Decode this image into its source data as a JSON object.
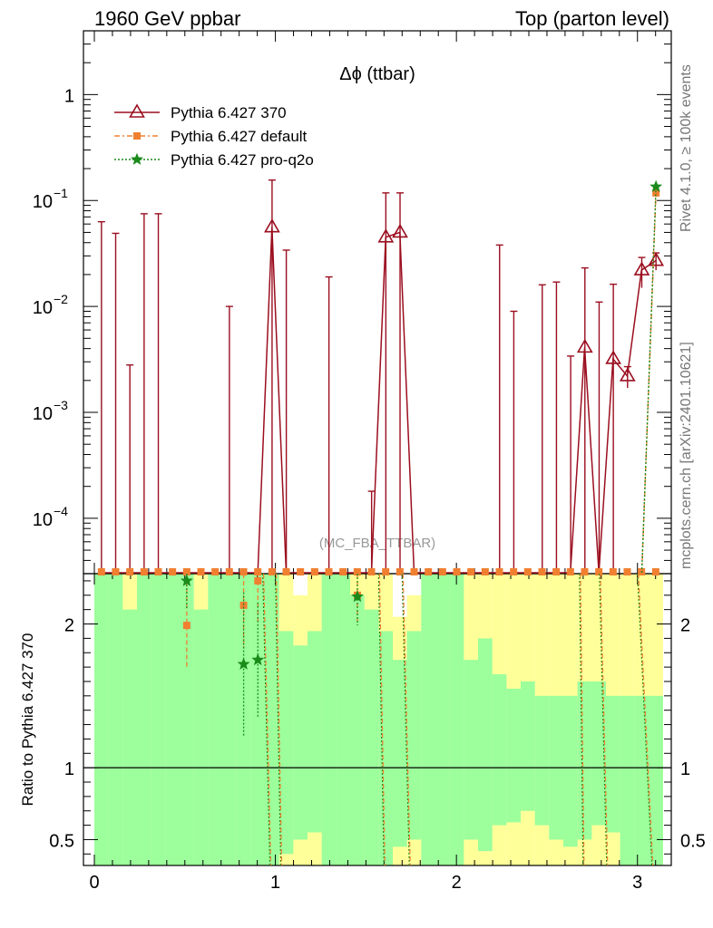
{
  "header": {
    "left": "1960 GeV ppbar",
    "right": "Top (parton level)"
  },
  "side_labels": {
    "rivet": "Rivet 4.1.0, ≥ 100k events",
    "mcplots": "mcplots.cern.ch [arXiv:2401.10621]"
  },
  "colors": {
    "pythia_370": "#9b0e1f",
    "pythia_default": "#f08030",
    "pythia_proq2o": "#1a8a1a",
    "band_green": "#9cff9c",
    "band_yellow": "#ffff99"
  },
  "chart_data": [
    {
      "type": "line",
      "title": "Δϕ (ttbar)",
      "watermark": "(MC_FBA_TTBAR)",
      "xlim": [
        0,
        3.1416
      ],
      "ylim": [
        3e-05,
        4
      ],
      "yscale": "log",
      "yticks": [
        {
          "value": 0.0001,
          "base": "10",
          "exp": "−4"
        },
        {
          "value": 0.001,
          "base": "10",
          "exp": "−3"
        },
        {
          "value": 0.01,
          "base": "10",
          "exp": "−2"
        },
        {
          "value": 0.1,
          "base": "10",
          "exp": "−1"
        },
        {
          "value": 1,
          "base": "1",
          "exp": ""
        }
      ],
      "legend_position": "top-left",
      "bin_width": 0.0785,
      "series": [
        {
          "name": "Pythia 6.427 370",
          "marker": "open-triangle",
          "line": "solid",
          "x": [
            0.9817,
            1.6101,
            1.6886,
            2.7096,
            2.8667,
            2.9452,
            3.0238,
            3.1023
          ],
          "y": [
            0.056,
            0.045,
            0.05,
            0.0041,
            0.0032,
            0.0022,
            0.022,
            0.027
          ],
          "err": [
            0.1,
            0.073,
            0.068,
            0.019,
            0.013,
            0.0005,
            0.007,
            0.005
          ]
        },
        {
          "name": "Pythia 6.427 default",
          "marker": "filled-square",
          "line": "dashdot",
          "x": [
            3.1023
          ],
          "y": [
            0.118
          ],
          "err": [
            0.004
          ]
        },
        {
          "name": "Pythia 6.427 pro-q2o",
          "marker": "star",
          "line": "dotted",
          "x": [
            3.1023
          ],
          "y": [
            0.135
          ],
          "err": [
            0.004
          ]
        }
      ],
      "empty_bin_errors": {
        "x": [
          0.0393,
          0.1178,
          0.1963,
          0.2749,
          0.3534,
          0.7461,
          1.0603,
          1.2959,
          1.5315,
          2.2384,
          2.3169,
          2.474,
          2.5525,
          2.6311,
          2.7882
        ],
        "err": [
          0.063,
          0.049,
          0.0028,
          0.075,
          0.075,
          0.01,
          0.034,
          0.019,
          0.00018,
          0.038,
          0.009,
          0.016,
          0.017,
          0.0034,
          0.011
        ]
      }
    },
    {
      "type": "area",
      "ylabel": "Ratio to Pythia 6.427 370",
      "xlim": [
        0,
        3.1416
      ],
      "ylim": [
        0.32,
        2.35
      ],
      "xticks": [
        "0",
        "1",
        "2",
        "3"
      ],
      "yticks": [
        "0.5",
        "1",
        "2"
      ],
      "reference_line": 1,
      "bands": {
        "green_top": [
          2.35,
          2.35,
          2.1,
          2.35,
          2.35,
          2.35,
          2.35,
          2.1,
          2.35,
          2.35,
          2.35,
          2.35,
          2.35,
          1.95,
          1.85,
          1.95,
          2.35,
          2.35,
          2.2,
          2.1,
          1.95,
          1.75,
          1.95,
          2.35,
          2.35,
          2.35,
          1.75,
          1.9,
          1.65,
          1.55,
          1.6,
          1.5,
          1.5,
          1.5,
          1.6,
          1.6,
          1.5,
          1.5,
          1.5,
          1.5,
          1.5
        ],
        "green_bottom": [
          0.32,
          0.32,
          0.32,
          0.32,
          0.32,
          0.32,
          0.32,
          0.32,
          0.32,
          0.32,
          0.32,
          0.32,
          0.32,
          0.4,
          0.5,
          0.55,
          0.32,
          0.32,
          0.32,
          0.32,
          0.32,
          0.45,
          0.5,
          0.32,
          0.32,
          0.32,
          0.5,
          0.42,
          0.6,
          0.62,
          0.7,
          0.6,
          0.5,
          0.45,
          0.5,
          0.6,
          0.55,
          0.32,
          0.32,
          0.32,
          0.32
        ],
        "yellow_top": [
          2.35,
          2.35,
          2.35,
          2.35,
          2.35,
          2.35,
          2.35,
          2.35,
          2.35,
          2.35,
          2.35,
          2.35,
          2.35,
          2.35,
          2.2,
          2.35,
          2.35,
          2.35,
          2.35,
          2.35,
          2.35,
          2.05,
          2.2,
          2.35,
          2.35,
          2.35,
          2.35,
          2.35,
          2.35,
          2.35,
          2.35,
          2.35,
          2.35,
          2.35,
          2.35,
          2.35,
          2.35,
          2.35,
          2.35,
          2.35,
          2.35
        ],
        "yellow_bottom": [
          0.32,
          0.32,
          0.32,
          0.32,
          0.32,
          0.32,
          0.32,
          0.32,
          0.32,
          0.32,
          0.32,
          0.32,
          0.32,
          0.32,
          0.32,
          0.32,
          0.32,
          0.32,
          0.32,
          0.32,
          0.32,
          0.32,
          0.32,
          0.32,
          0.32,
          0.32,
          0.32,
          0.32,
          0.32,
          0.32,
          0.32,
          0.32,
          0.32,
          0.32,
          0.32,
          0.32,
          0.32,
          0.32,
          0.32,
          0.32,
          0.32
        ]
      },
      "series": [
        {
          "name": "Pythia 6.427 default",
          "x": [
            0.5105,
            0.8247,
            0.9032,
            1.453
          ],
          "y": [
            1.99,
            2.13,
            2.3,
            2.2
          ],
          "err": [
            0.3,
            0.3,
            0.3,
            0.2
          ]
        },
        {
          "name": "Pythia 6.427 pro-q2o",
          "x": [
            0.5105,
            0.8247,
            0.9032,
            1.453
          ],
          "y": [
            2.3,
            1.72,
            1.75,
            2.19
          ],
          "err": [
            0.2,
            0.5,
            0.4,
            0.2
          ]
        }
      ]
    }
  ]
}
